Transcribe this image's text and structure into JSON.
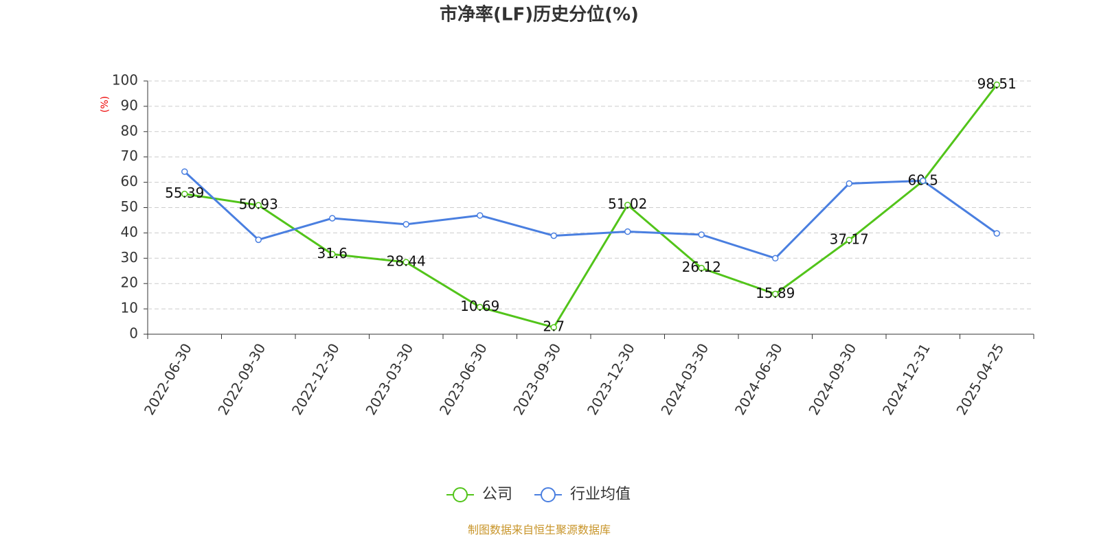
{
  "chart_data": {
    "type": "line",
    "title": "市净率(LF)历史分位(%)",
    "y_label": "(%)",
    "categories": [
      "2022-06-30",
      "2022-09-30",
      "2022-12-30",
      "2023-03-30",
      "2023-06-30",
      "2023-09-30",
      "2023-12-30",
      "2024-03-30",
      "2024-06-30",
      "2024-09-30",
      "2024-12-31",
      "2025-04-25"
    ],
    "series": [
      {
        "name": "公司",
        "color": "#52c41a",
        "labels": true,
        "values": [
          55.39,
          50.93,
          31.6,
          28.44,
          10.69,
          2.7,
          51.02,
          26.12,
          15.89,
          37.17,
          60.5,
          98.51
        ]
      },
      {
        "name": "行业均值",
        "color": "#4a7fe0",
        "labels": false,
        "values": [
          64.2,
          37.3,
          45.8,
          43.4,
          46.9,
          38.9,
          40.5,
          39.3,
          30.0,
          59.5,
          60.6,
          39.8
        ]
      }
    ],
    "ylim": [
      0,
      100
    ],
    "yticks": [
      0,
      10,
      20,
      30,
      40,
      50,
      60,
      70,
      80,
      90,
      100
    ],
    "grid": true,
    "legend": "bottom",
    "source": "制图数据来自恒生聚源数据库"
  }
}
